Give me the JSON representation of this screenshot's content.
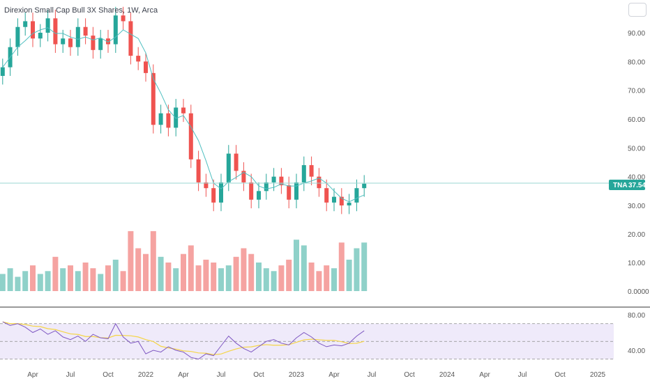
{
  "chart_data": {
    "type": "candlestick",
    "title": "Direxion Small Cap Bull 3X Shares, 1W, Arca",
    "symbol": "TNA",
    "last_price": "37.54",
    "price_axis": {
      "ticks": [
        "90.00",
        "80.00",
        "70.00",
        "60.00",
        "50.00",
        "40.00",
        "30.00"
      ],
      "values": [
        90,
        80,
        70,
        60,
        50,
        40,
        30
      ]
    },
    "volume_axis": {
      "ticks": [
        "20.00",
        "10.00",
        "0.0000"
      ],
      "values": [
        20,
        10,
        0
      ]
    },
    "rsi_axis": {
      "ticks": [
        "80.00",
        "40.00"
      ],
      "values": [
        80,
        40
      ]
    },
    "x_ticks": [
      "Apr",
      "Jul",
      "Oct",
      "2022",
      "Apr",
      "Jul",
      "Oct",
      "2023",
      "Apr",
      "Jul",
      "Oct",
      "2024",
      "Apr",
      "Jul",
      "Oct",
      "2025"
    ],
    "x_tick_years": [
      2021.25,
      2021.5,
      2021.75,
      2022.0,
      2022.25,
      2022.5,
      2022.75,
      2023.0,
      2023.25,
      2023.5,
      2023.75,
      2024.0,
      2024.25,
      2024.5,
      2024.75,
      2025.0
    ],
    "colors": {
      "up": "#26a69a",
      "down": "#ef5350",
      "up_vol": "#8fd1c9",
      "down_vol": "#f5a3a1",
      "ma": "#4fbfc0",
      "rsi": "#7e57c2",
      "rsi_ma": "#f5d547"
    },
    "close_path": [
      [
        2021.05,
        78
      ],
      [
        2021.1,
        85
      ],
      [
        2021.15,
        92
      ],
      [
        2021.2,
        94
      ],
      [
        2021.25,
        88
      ],
      [
        2021.3,
        90
      ],
      [
        2021.35,
        95
      ],
      [
        2021.4,
        86
      ],
      [
        2021.45,
        88
      ],
      [
        2021.5,
        85
      ],
      [
        2021.55,
        92
      ],
      [
        2021.6,
        89
      ],
      [
        2021.65,
        84
      ],
      [
        2021.7,
        88
      ],
      [
        2021.75,
        86
      ],
      [
        2021.8,
        96
      ],
      [
        2021.85,
        94
      ],
      [
        2021.9,
        82
      ],
      [
        2021.95,
        80
      ],
      [
        2022.0,
        76
      ],
      [
        2022.05,
        58
      ],
      [
        2022.1,
        62
      ],
      [
        2022.15,
        57
      ],
      [
        2022.2,
        64
      ],
      [
        2022.25,
        62
      ],
      [
        2022.3,
        46
      ],
      [
        2022.35,
        38
      ],
      [
        2022.4,
        36
      ],
      [
        2022.45,
        31
      ],
      [
        2022.5,
        38
      ],
      [
        2022.55,
        48
      ],
      [
        2022.6,
        42
      ],
      [
        2022.65,
        38
      ],
      [
        2022.7,
        32
      ],
      [
        2022.75,
        35
      ],
      [
        2022.8,
        38
      ],
      [
        2022.85,
        40
      ],
      [
        2022.9,
        37
      ],
      [
        2022.95,
        32
      ],
      [
        2023.0,
        38
      ],
      [
        2023.05,
        44
      ],
      [
        2023.1,
        40
      ],
      [
        2023.15,
        36
      ],
      [
        2023.2,
        31
      ],
      [
        2023.25,
        33
      ],
      [
        2023.3,
        30
      ],
      [
        2023.35,
        31
      ],
      [
        2023.4,
        36
      ],
      [
        2023.45,
        37.54
      ]
    ],
    "volume_bars": [
      [
        2021.05,
        6
      ],
      [
        2021.1,
        8
      ],
      [
        2021.15,
        5
      ],
      [
        2021.2,
        7
      ],
      [
        2021.25,
        9
      ],
      [
        2021.3,
        6
      ],
      [
        2021.35,
        7
      ],
      [
        2021.4,
        12
      ],
      [
        2021.45,
        8
      ],
      [
        2021.5,
        9
      ],
      [
        2021.55,
        7
      ],
      [
        2021.6,
        10
      ],
      [
        2021.65,
        8
      ],
      [
        2021.7,
        6
      ],
      [
        2021.75,
        9
      ],
      [
        2021.8,
        11
      ],
      [
        2021.85,
        7
      ],
      [
        2021.9,
        21
      ],
      [
        2021.95,
        15
      ],
      [
        2022.0,
        13
      ],
      [
        2022.05,
        21
      ],
      [
        2022.1,
        12
      ],
      [
        2022.15,
        10
      ],
      [
        2022.2,
        8
      ],
      [
        2022.25,
        13
      ],
      [
        2022.3,
        16
      ],
      [
        2022.35,
        9
      ],
      [
        2022.4,
        11
      ],
      [
        2022.45,
        10
      ],
      [
        2022.5,
        8
      ],
      [
        2022.55,
        9
      ],
      [
        2022.6,
        12
      ],
      [
        2022.65,
        15
      ],
      [
        2022.7,
        13
      ],
      [
        2022.75,
        10
      ],
      [
        2022.8,
        8
      ],
      [
        2022.85,
        7
      ],
      [
        2022.9,
        9
      ],
      [
        2022.95,
        11
      ],
      [
        2023.0,
        18
      ],
      [
        2023.05,
        16
      ],
      [
        2023.1,
        10
      ],
      [
        2023.15,
        7
      ],
      [
        2023.2,
        9
      ],
      [
        2023.25,
        8
      ],
      [
        2023.3,
        17
      ],
      [
        2023.35,
        11
      ],
      [
        2023.4,
        15
      ],
      [
        2023.45,
        17
      ]
    ],
    "rsi_path": [
      [
        2021.05,
        72
      ],
      [
        2021.1,
        68
      ],
      [
        2021.15,
        70
      ],
      [
        2021.2,
        66
      ],
      [
        2021.25,
        60
      ],
      [
        2021.3,
        64
      ],
      [
        2021.35,
        58
      ],
      [
        2021.4,
        62
      ],
      [
        2021.45,
        55
      ],
      [
        2021.5,
        52
      ],
      [
        2021.55,
        56
      ],
      [
        2021.6,
        50
      ],
      [
        2021.65,
        58
      ],
      [
        2021.7,
        54
      ],
      [
        2021.75,
        53
      ],
      [
        2021.8,
        70
      ],
      [
        2021.85,
        55
      ],
      [
        2021.9,
        48
      ],
      [
        2021.95,
        50
      ],
      [
        2022.0,
        36
      ],
      [
        2022.05,
        40
      ],
      [
        2022.1,
        38
      ],
      [
        2022.15,
        44
      ],
      [
        2022.2,
        40
      ],
      [
        2022.25,
        38
      ],
      [
        2022.3,
        32
      ],
      [
        2022.35,
        30
      ],
      [
        2022.4,
        36
      ],
      [
        2022.45,
        34
      ],
      [
        2022.5,
        45
      ],
      [
        2022.55,
        56
      ],
      [
        2022.6,
        48
      ],
      [
        2022.65,
        42
      ],
      [
        2022.7,
        38
      ],
      [
        2022.75,
        44
      ],
      [
        2022.8,
        50
      ],
      [
        2022.85,
        52
      ],
      [
        2022.9,
        48
      ],
      [
        2022.95,
        46
      ],
      [
        2023.0,
        54
      ],
      [
        2023.05,
        60
      ],
      [
        2023.1,
        55
      ],
      [
        2023.15,
        48
      ],
      [
        2023.2,
        44
      ],
      [
        2023.25,
        46
      ],
      [
        2023.3,
        45
      ],
      [
        2023.35,
        48
      ],
      [
        2023.4,
        56
      ],
      [
        2023.45,
        62
      ]
    ]
  }
}
